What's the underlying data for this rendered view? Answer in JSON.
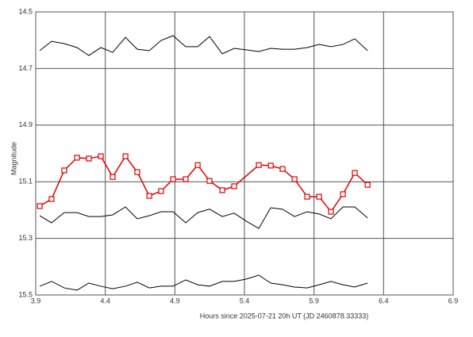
{
  "chart_data": {
    "type": "line",
    "x_label": "Hours since 2025-07-21 20h UT (JD 2460878.33333)",
    "y_label": "Magnitude",
    "xlim": [
      3.9,
      6.9
    ],
    "xticks": [
      3.9,
      4.4,
      4.9,
      5.4,
      5.9,
      6.4,
      6.9
    ],
    "ylim": [
      14.5,
      15.5
    ],
    "yticks": [
      14.5,
      14.7,
      14.9,
      15.1,
      15.3,
      15.5
    ],
    "y_inverted": true,
    "grid": true,
    "series": [
      {
        "color": "#000000",
        "marker": "none",
        "x": [
          3.929,
          4.014,
          4.105,
          4.197,
          4.282,
          4.368,
          4.453,
          4.545,
          4.63,
          4.716,
          4.801,
          4.887,
          4.978,
          5.064,
          5.149,
          5.241,
          5.326,
          5.412,
          5.503,
          5.589,
          5.674,
          5.76,
          5.851,
          5.937,
          6.022,
          6.108,
          6.193,
          6.285
        ],
        "values": [
          14.637,
          14.604,
          14.612,
          14.626,
          14.654,
          14.626,
          14.643,
          14.59,
          14.632,
          14.637,
          14.601,
          14.584,
          14.623,
          14.623,
          14.587,
          14.648,
          14.629,
          14.634,
          14.64,
          14.629,
          14.632,
          14.632,
          14.626,
          14.615,
          14.623,
          14.615,
          14.595,
          14.637
        ]
      },
      {
        "color": "#000000",
        "marker": "none",
        "x": [
          3.929,
          4.014,
          4.105,
          4.197,
          4.282,
          4.368,
          4.453,
          4.545,
          4.63,
          4.716,
          4.801,
          4.887,
          4.978,
          5.064,
          5.149,
          5.241,
          5.326,
          5.412,
          5.503,
          5.589,
          5.674,
          5.76,
          5.851,
          5.937,
          6.022,
          6.108,
          6.193,
          6.285
        ],
        "values": [
          15.22,
          15.245,
          15.209,
          15.209,
          15.223,
          15.223,
          15.217,
          15.189,
          15.231,
          15.22,
          15.206,
          15.206,
          15.245,
          15.209,
          15.197,
          15.223,
          15.211,
          15.239,
          15.265,
          15.192,
          15.197,
          15.223,
          15.206,
          15.214,
          15.231,
          15.189,
          15.189,
          15.228
        ]
      },
      {
        "color": "#000000",
        "marker": "none",
        "x": [
          3.929,
          4.014,
          4.105,
          4.197,
          4.282,
          4.368,
          4.453,
          4.545,
          4.63,
          4.716,
          4.801,
          4.887,
          4.978,
          5.064,
          5.149,
          5.241,
          5.326,
          5.412,
          5.503,
          5.589,
          5.674,
          5.76,
          5.851,
          5.937,
          6.022,
          6.108,
          6.193,
          6.285
        ],
        "values": [
          15.469,
          15.452,
          15.475,
          15.483,
          15.458,
          15.469,
          15.478,
          15.469,
          15.455,
          15.475,
          15.469,
          15.469,
          15.447,
          15.464,
          15.469,
          15.452,
          15.452,
          15.444,
          15.43,
          15.458,
          15.464,
          15.472,
          15.475,
          15.464,
          15.452,
          15.464,
          15.472,
          15.458
        ]
      },
      {
        "color": "#e00000",
        "marker": "square",
        "x": [
          3.929,
          4.014,
          4.105,
          4.197,
          4.282,
          4.368,
          4.453,
          4.545,
          4.63,
          4.716,
          4.801,
          4.887,
          4.978,
          5.064,
          5.149,
          5.241,
          5.326,
          5.503,
          5.589,
          5.674,
          5.76,
          5.851,
          5.937,
          6.022,
          6.108,
          6.193,
          6.285
        ],
        "values": [
          15.186,
          15.161,
          15.06,
          15.015,
          15.018,
          15.01,
          15.083,
          15.01,
          15.066,
          15.15,
          15.133,
          15.091,
          15.091,
          15.041,
          15.097,
          15.13,
          15.116,
          15.041,
          15.043,
          15.055,
          15.091,
          15.153,
          15.153,
          15.206,
          15.144,
          15.069,
          15.111
        ]
      }
    ]
  }
}
